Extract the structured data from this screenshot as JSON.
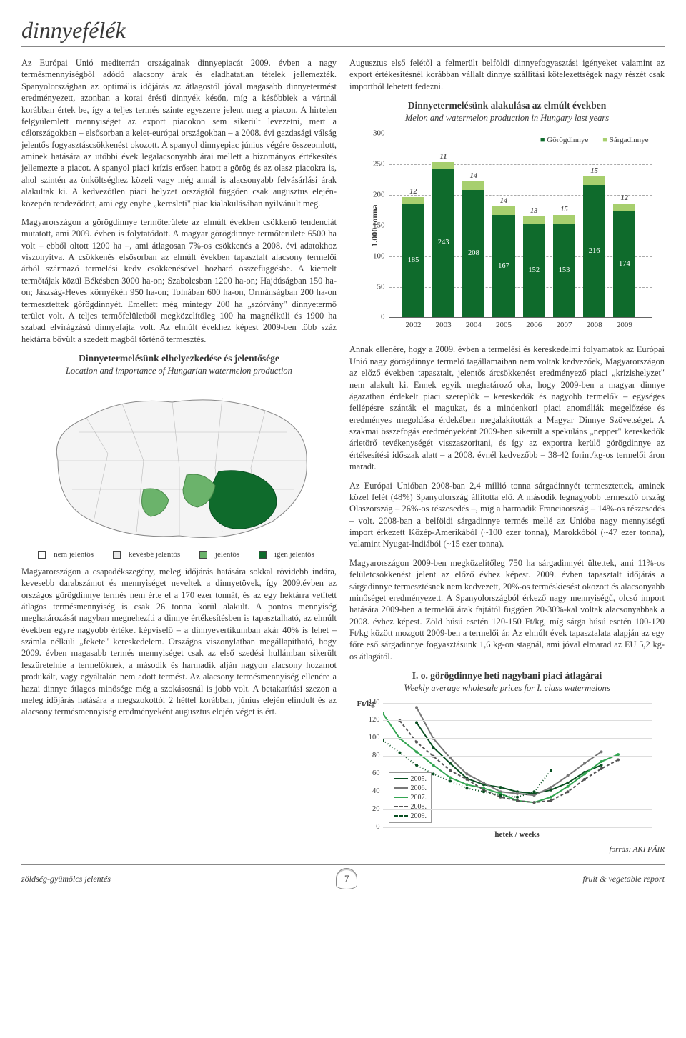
{
  "header": {
    "title": "dinnyefélék"
  },
  "left": {
    "para1": "Az Európai Unió mediterrán országainak dinnyepiacát 2009. évben a nagy termésmennyiségből adódó alacsony árak és eladhatatlan tételek jellemezték. Spanyolországban az optimális időjárás az átlagostól jóval magasabb dinnyetermést eredményezett, azonban a korai érésű dinnyék későn, míg a későbbiek a vártnál korábban értek be, így a teljes termés szinte egyszerre jelent meg a piacon. A hirtelen felgyülemlett mennyiséget az export piacokon sem sikerült levezetni, mert a célországokban – elsősorban a kelet-európai országokban – a 2008. évi gazdasági válság jelentős fogyasztáscsökkenést okozott. A spanyol dinnyepiac június végére összeomlott, aminek hatására az utóbbi évek legalacsonyabb árai mellett a bizományos értékesítés jellemezte a piacot. A spanyol piaci krízis erősen hatott a görög és az olasz piacokra is, ahol szintén az önköltséghez közeli vagy még annál is alacsonyabb felvásárlási árak alakultak ki. A kedvezőtlen piaci helyzet országtól függően csak augusztus elején-közepén rendeződött, ami egy enyhe „keresleti\" piac kialakulásában nyilvánult meg.",
    "para2": "Magyarországon a görögdinnye termőterülete az elmúlt években csökkenő tendenciát mutatott, ami 2009. évben is folytatódott. A magyar görögdinnye termőterülete 6500 ha volt – ebből oltott 1200 ha –, ami átlagosan 7%-os csökkenés a 2008. évi adatokhoz viszonyítva. A csökkenés elsősorban az elmúlt években tapasztalt alacsony termelői árból származó termelési kedv csökkenésével hozható összefüggésbe. A kiemelt termőtájak közül Békésben 3000 ha-on; Szabolcsban 1200 ha-on; Hajdúságban 150 ha-on; Jászság-Heves környékén 950 ha-on; Tolnában 600 ha-on, Ormánságban 200 ha-on termesztettek görögdinnyét. Emellett még mintegy 200 ha „szórvány\" dinnyetermő terület volt. A teljes termőfelületből megközelítőleg 100 ha magnélküli és 1900 ha szabad elvirágzású dinnyefajta volt. Az elmúlt évekhez képest 2009-ben több száz hektárra bővült a szedett magból történő termesztés.",
    "map_title": "Dinnyetermelésünk elhelyezkedése és jelentősége",
    "map_subtitle": "Location and importance of Hungarian watermelon production",
    "map_legend": {
      "l1": "nem jelentős",
      "l2": "kevésbé jelentős",
      "l3": "jelentős",
      "l4": "igen jelentős",
      "c1": "#ffffff",
      "c2": "#e8e8e8",
      "c3": "#6bb36b",
      "c4": "#0f6b2c"
    },
    "para3": "Magyarországon a csapadékszegény, meleg időjárás hatására sokkal rövidebb indára, kevesebb darabszámot és mennyiséget neveltek a dinnyetövek, így 2009.évben az országos görögdinnye termés nem érte el a 170 ezer tonnát, és az egy hektárra vetített átlagos termésmennyiség is csak 26 tonna körül alakult. A pontos mennyiség meghatározását nagyban megnehezíti a dinnye értékesítésben is tapasztalható, az elmúlt években egyre nagyobb értéket képviselő – a dinnyevertikumban akár 40% is lehet – számla nélküli „fekete\" kereskedelem. Országos viszonylatban megállapítható, hogy 2009. évben magasabb termés mennyiséget csak az első szedési hullámban sikerült leszüretelnie a termelőknek, a második és harmadik alján nagyon alacsony hozamot produkált, vagy egyáltalán nem adott termést. Az alacsony termésmennyiség ellenére a hazai dinnye átlagos minősége még a szokásosnál is jobb volt. A betakarítási szezon a meleg időjárás hatására a megszokottól 2 héttel korábban, június elején elindult és az alacsony termésmennyiség eredményeként augusztus elején véget is ért."
  },
  "right": {
    "intro": "Augusztus első felétől a felmerült belföldi dinnyefogyasztási igényeket valamint az export értékesítésnél korábban vállalt dinnye szállítási kötelezettségek nagy részét csak importból lehetett fedezni.",
    "chart_title": "Dinnyetermelésünk alakulása az elmúlt években",
    "chart_subtitle": "Melon and watermelon production in Hungary last years",
    "bar_chart": {
      "type": "stacked-bar",
      "ylabel": "1.000 tonna",
      "ymax": 300,
      "ytick_step": 50,
      "categories": [
        "2002",
        "2003",
        "2004",
        "2005",
        "2006",
        "2007",
        "2008",
        "2009"
      ],
      "series": [
        {
          "name": "Görögdinnye",
          "color": "#0f6b2c",
          "values": [
            185,
            243,
            208,
            167,
            152,
            153,
            216,
            174
          ]
        },
        {
          "name": "Sárgadinnye",
          "color": "#a7cf6e",
          "values": [
            12,
            11,
            14,
            14,
            13,
            15,
            15,
            12
          ]
        }
      ],
      "bar_width_pct": 8.5,
      "left_gap_pct": 5,
      "group_gap_pct": 11.5,
      "legend_marker": "■"
    },
    "para_r1": "Annak ellenére, hogy a 2009. évben a termelési és kereskedelmi folyamatok az Európai Unió nagy görögdinnye termelő tagállamaiban nem voltak kedvezőek, Magyarországon az előző években tapasztalt, jelentős árcsökkenést eredményező piaci „krízishelyzet\" nem alakult ki. Ennek egyik meghatározó oka, hogy 2009-ben a magyar dinnye ágazatban érdekelt piaci szereplők – kereskedők és nagyobb termelők – egységes fellépésre szánták el magukat, és a mindenkori piaci anomáliák megelőzése és eredményes megoldása érdekében megalakították a Magyar Dinnye Szövetséget. A szakmai összefogás eredményeként 2009-ben sikerült a spekuláns „nepper\" kereskedők árletörő tevékenységét visszaszorítani, és így az exportra kerülő görögdinnye az értékesítési időszak alatt – a 2008. évnél kedvezőbb – 38-42 forint/kg-os termelői áron maradt.",
    "para_r2": "Az Európai Unióban 2008-ban 2,4 millió tonna sárgadinnyét termesztettek, aminek közel felét (48%) Spanyolország állította elő. A második legnagyobb termesztő ország Olaszország – 26%-os részesedés –, míg a harmadik Franciaország – 14%-os részesedés – volt. 2008-ban a belföldi sárgadinnye termés mellé az Unióba nagy mennyiségű import érkezett Közép-Amerikából (~100 ezer tonna), Marokkóból (~47 ezer tonna), valamint Nyugat-Indiából (~15 ezer tonna).",
    "para_r3": "Magyarországon 2009-ben megközelítőleg 750 ha sárgadinnyét ültettek, ami 11%-os felületcsökkenést jelent az előző évhez képest. 2009. évben tapasztalt időjárás a sárgadinnye termesztésnek nem kedvezett, 20%-os terméskiesést okozott és alacsonyabb minőséget eredményezett. A Spanyolországból érkező nagy mennyiségű, olcsó import hatására 2009-ben a termelői árak fajtától függően 20-30%-kal voltak alacsonyabbak a 2008. évhez képest. Zöld húsú esetén 120-150 Ft/kg, míg sárga húsú esetén 100-120 Ft/kg között mozgott 2009-ben a termelői ár. Az elmúlt évek tapasztalata alapján az egy főre eső sárgadinnye fogyasztásunk 1,6 kg-on stagnál, ami jóval elmarad az EU 5,2 kg-os átlagától.",
    "line_title": "I. o. görögdinnye heti nagybani piaci átlagárai",
    "line_subtitle": "Weekly average wholesale prices for I. class watermelons",
    "line_chart": {
      "type": "line",
      "ylabel": "Ft/kg",
      "xlabel": "hetek / weeks",
      "ymax": 140,
      "ytick_step": 20,
      "x_domain": [
        24,
        40
      ],
      "series": [
        {
          "name": "2005.",
          "color": "#0a4f22",
          "dash": "none",
          "points": [
            [
              26,
              118
            ],
            [
              27,
              90
            ],
            [
              28,
              72
            ],
            [
              29,
              55
            ],
            [
              30,
              48
            ],
            [
              31,
              45
            ],
            [
              32,
              40
            ],
            [
              33,
              38
            ],
            [
              34,
              42
            ],
            [
              35,
              50
            ],
            [
              36,
              62
            ],
            [
              37,
              70
            ]
          ]
        },
        {
          "name": "2006.",
          "color": "#777777",
          "dash": "none",
          "points": [
            [
              26,
              135
            ],
            [
              27,
              100
            ],
            [
              28,
              78
            ],
            [
              29,
              60
            ],
            [
              30,
              50
            ],
            [
              31,
              40
            ],
            [
              32,
              38
            ],
            [
              33,
              36
            ],
            [
              34,
              45
            ],
            [
              35,
              58
            ],
            [
              36,
              72
            ],
            [
              37,
              85
            ]
          ]
        },
        {
          "name": "2007.",
          "color": "#34a552",
          "dash": "none",
          "points": [
            [
              24,
              128
            ],
            [
              25,
              100
            ],
            [
              26,
              85
            ],
            [
              27,
              70
            ],
            [
              28,
              56
            ],
            [
              29,
              48
            ],
            [
              30,
              44
            ],
            [
              31,
              38
            ],
            [
              32,
              30
            ],
            [
              33,
              28
            ],
            [
              34,
              34
            ],
            [
              35,
              46
            ],
            [
              36,
              60
            ],
            [
              37,
              74
            ],
            [
              38,
              82
            ]
          ]
        },
        {
          "name": "2008.",
          "color": "#555555",
          "dash": "4,3",
          "points": [
            [
              25,
              120
            ],
            [
              26,
              96
            ],
            [
              27,
              80
            ],
            [
              28,
              64
            ],
            [
              29,
              54
            ],
            [
              30,
              42
            ],
            [
              31,
              34
            ],
            [
              32,
              30
            ],
            [
              33,
              28
            ],
            [
              34,
              30
            ],
            [
              35,
              40
            ],
            [
              36,
              54
            ],
            [
              37,
              66
            ],
            [
              38,
              76
            ]
          ]
        },
        {
          "name": "2009.",
          "color": "#0a4f22",
          "dash": "1,3",
          "points": [
            [
              24,
              98
            ],
            [
              25,
              84
            ],
            [
              26,
              70
            ],
            [
              27,
              60
            ],
            [
              28,
              52
            ],
            [
              29,
              44
            ],
            [
              30,
              40
            ],
            [
              31,
              36
            ],
            [
              32,
              34
            ],
            [
              33,
              40
            ],
            [
              34,
              64
            ]
          ]
        }
      ]
    },
    "source": "forrás: AKI PÁIR"
  },
  "footer": {
    "left": "zöldség-gyümölcs jelentés",
    "page": "7",
    "right": "fruit & vegetable report"
  }
}
